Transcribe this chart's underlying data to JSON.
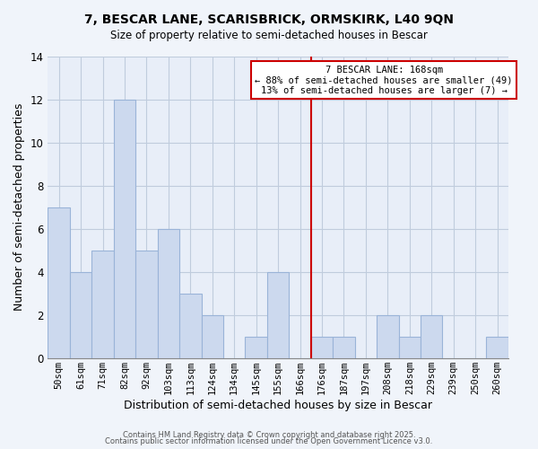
{
  "title": "7, BESCAR LANE, SCARISBRICK, ORMSKIRK, L40 9QN",
  "subtitle": "Size of property relative to semi-detached houses in Bescar",
  "xlabel": "Distribution of semi-detached houses by size in Bescar",
  "ylabel": "Number of semi-detached properties",
  "bar_color": "#ccd9ee",
  "bar_edge_color": "#9ab4d8",
  "categories": [
    "50sqm",
    "61sqm",
    "71sqm",
    "82sqm",
    "92sqm",
    "103sqm",
    "113sqm",
    "124sqm",
    "134sqm",
    "145sqm",
    "155sqm",
    "166sqm",
    "176sqm",
    "187sqm",
    "197sqm",
    "208sqm",
    "218sqm",
    "229sqm",
    "239sqm",
    "250sqm",
    "260sqm"
  ],
  "values": [
    7,
    4,
    5,
    12,
    5,
    6,
    3,
    2,
    0,
    1,
    4,
    0,
    1,
    1,
    0,
    2,
    1,
    2,
    0,
    0,
    1
  ],
  "vline_color": "#cc0000",
  "annotation_title": "7 BESCAR LANE: 168sqm",
  "annotation_line1": "← 88% of semi-detached houses are smaller (49)",
  "annotation_line2": "13% of semi-detached houses are larger (7) →",
  "ylim": [
    0,
    14
  ],
  "yticks": [
    0,
    2,
    4,
    6,
    8,
    10,
    12,
    14
  ],
  "footer1": "Contains HM Land Registry data © Crown copyright and database right 2025.",
  "footer2": "Contains public sector information licensed under the Open Government Licence v3.0.",
  "background_color": "#f0f4fa",
  "plot_bg_color": "#e8eef8",
  "grid_color": "#c0ccdd"
}
